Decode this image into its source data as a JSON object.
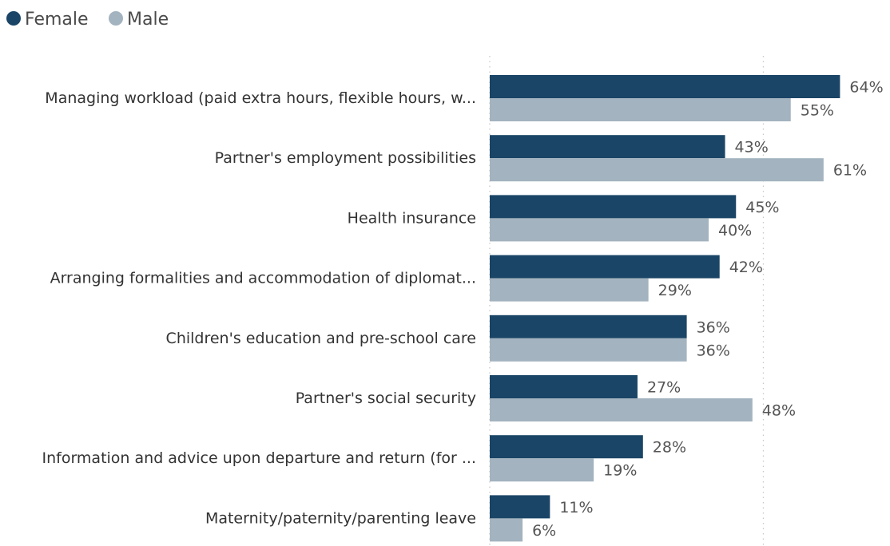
{
  "chart_data": {
    "type": "bar",
    "orientation": "horizontal",
    "categories": [
      "Managing workload (paid extra hours, flexible hours, w...",
      "Partner's employment possibilities",
      "Health insurance",
      "Arranging formalities and accommodation of diplomat...",
      "Children's education and pre-school care",
      "Partner's social security",
      "Information and advice upon departure and return (for ...",
      "Maternity/paternity/parenting leave"
    ],
    "series": [
      {
        "name": "Female",
        "color": "#1a4566",
        "values": [
          64,
          43,
          45,
          42,
          36,
          27,
          28,
          11
        ]
      },
      {
        "name": "Male",
        "color": "#a3b3bf",
        "values": [
          55,
          61,
          40,
          29,
          36,
          48,
          19,
          6
        ]
      }
    ],
    "value_suffix": "%",
    "xlim": [
      0,
      72
    ],
    "gridlines_at": [
      0,
      50
    ],
    "grid": true,
    "legend": "top-left"
  }
}
